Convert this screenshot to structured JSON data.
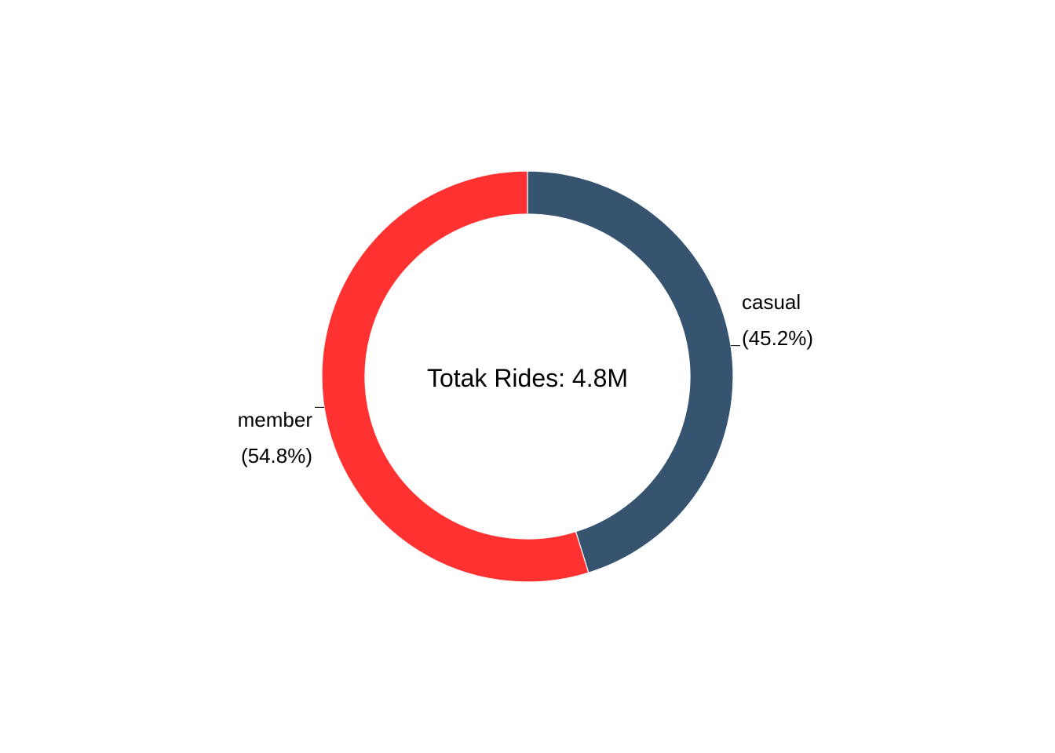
{
  "chart_data": {
    "type": "pie",
    "donut": true,
    "center_label": "Totak Rides: 4.8M",
    "categories": [
      "casual",
      "member"
    ],
    "values": [
      45.2,
      54.8
    ],
    "unit": "%",
    "labels": [
      {
        "name": "casual",
        "pct": "(45.2%)"
      },
      {
        "name": "member",
        "pct": "(54.8%)"
      }
    ],
    "colors": [
      "#36536F",
      "#FF3131"
    ],
    "legend": "none",
    "grid": false
  }
}
